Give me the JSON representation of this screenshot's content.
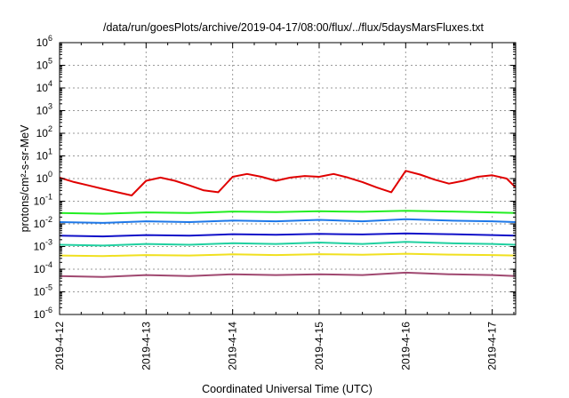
{
  "chart_data": {
    "type": "line",
    "title": "/data/run/goesPlots/archive/2019-04-17/08:00/flux/../flux/5daysMarsFluxes.txt",
    "xlabel": "Coordinated Universal Time (UTC)",
    "ylabel": "protons/cm²-s-sr-MeV",
    "y_scale": "log",
    "ylim": [
      1e-06,
      1000000.0
    ],
    "xlim": [
      "2019-04-12T00:00",
      "2019-04-17T06:30"
    ],
    "x_ticks": [
      "2019-4-12",
      "2019-4-13",
      "2019-4-14",
      "2019-4-15",
      "2019-4-16",
      "2019-4-17"
    ],
    "y_ticks": [
      {
        "base": "10",
        "exp": "-6"
      },
      {
        "base": "10",
        "exp": "-5"
      },
      {
        "base": "10",
        "exp": "-4"
      },
      {
        "base": "10",
        "exp": "-3"
      },
      {
        "base": "10",
        "exp": "-2"
      },
      {
        "base": "10",
        "exp": "-1"
      },
      {
        "base": "10",
        "exp": "0"
      },
      {
        "base": "10",
        "exp": "1"
      },
      {
        "base": "10",
        "exp": "2"
      },
      {
        "base": "10",
        "exp": "3"
      },
      {
        "base": "10",
        "exp": "4"
      },
      {
        "base": "10",
        "exp": "5"
      },
      {
        "base": "10",
        "exp": "6"
      }
    ],
    "grid": true,
    "legend": "none",
    "series": [
      {
        "color": "#e00000",
        "x": [
          "2019-04-12T00:00",
          "2019-04-12T04:00",
          "2019-04-12T08:00",
          "2019-04-12T12:00",
          "2019-04-12T16:00",
          "2019-04-12T20:00",
          "2019-04-13T00:00",
          "2019-04-13T04:00",
          "2019-04-13T08:00",
          "2019-04-13T12:00",
          "2019-04-13T16:00",
          "2019-04-13T20:00",
          "2019-04-14T00:00",
          "2019-04-14T04:00",
          "2019-04-14T08:00",
          "2019-04-14T12:00",
          "2019-04-14T16:00",
          "2019-04-14T20:00",
          "2019-04-15T00:00",
          "2019-04-15T04:00",
          "2019-04-15T08:00",
          "2019-04-15T12:00",
          "2019-04-15T16:00",
          "2019-04-15T20:00",
          "2019-04-16T00:00",
          "2019-04-16T04:00",
          "2019-04-16T08:00",
          "2019-04-16T12:00",
          "2019-04-16T16:00",
          "2019-04-16T20:00",
          "2019-04-17T00:00",
          "2019-04-17T04:00",
          "2019-04-17T06:30"
        ],
        "y": [
          1.1,
          0.7,
          0.5,
          0.35,
          0.25,
          0.18,
          0.8,
          1.1,
          0.8,
          0.5,
          0.3,
          0.25,
          1.2,
          1.6,
          1.2,
          0.8,
          1.1,
          1.3,
          1.2,
          1.6,
          1.1,
          0.7,
          0.4,
          0.25,
          2.2,
          1.5,
          0.9,
          0.6,
          0.8,
          1.2,
          1.4,
          1.0,
          0.4
        ]
      },
      {
        "color": "#22ee22",
        "x": [
          "2019-04-12T00:00",
          "2019-04-12T12:00",
          "2019-04-13T00:00",
          "2019-04-13T12:00",
          "2019-04-14T00:00",
          "2019-04-14T12:00",
          "2019-04-15T00:00",
          "2019-04-15T12:00",
          "2019-04-16T00:00",
          "2019-04-16T12:00",
          "2019-04-17T00:00",
          "2019-04-17T06:30"
        ],
        "y": [
          0.03,
          0.028,
          0.032,
          0.03,
          0.035,
          0.033,
          0.036,
          0.034,
          0.038,
          0.035,
          0.032,
          0.03
        ]
      },
      {
        "color": "#1e78e8",
        "x": [
          "2019-04-12T00:00",
          "2019-04-12T12:00",
          "2019-04-13T00:00",
          "2019-04-13T12:00",
          "2019-04-14T00:00",
          "2019-04-14T12:00",
          "2019-04-15T00:00",
          "2019-04-15T12:00",
          "2019-04-16T00:00",
          "2019-04-16T12:00",
          "2019-04-17T00:00",
          "2019-04-17T06:30"
        ],
        "y": [
          0.012,
          0.011,
          0.013,
          0.012,
          0.014,
          0.013,
          0.015,
          0.013,
          0.016,
          0.014,
          0.013,
          0.012
        ]
      },
      {
        "color": "#1010c8",
        "x": [
          "2019-04-12T00:00",
          "2019-04-12T12:00",
          "2019-04-13T00:00",
          "2019-04-13T12:00",
          "2019-04-14T00:00",
          "2019-04-14T12:00",
          "2019-04-15T00:00",
          "2019-04-15T12:00",
          "2019-04-16T00:00",
          "2019-04-16T12:00",
          "2019-04-17T00:00",
          "2019-04-17T06:30"
        ],
        "y": [
          0.003,
          0.0028,
          0.0032,
          0.003,
          0.0035,
          0.0033,
          0.0036,
          0.0034,
          0.0038,
          0.0035,
          0.0032,
          0.003
        ]
      },
      {
        "color": "#20d0a0",
        "x": [
          "2019-04-12T00:00",
          "2019-04-12T12:00",
          "2019-04-13T00:00",
          "2019-04-13T12:00",
          "2019-04-14T00:00",
          "2019-04-14T12:00",
          "2019-04-15T00:00",
          "2019-04-15T12:00",
          "2019-04-16T00:00",
          "2019-04-16T12:00",
          "2019-04-17T00:00",
          "2019-04-17T06:30"
        ],
        "y": [
          0.0012,
          0.0011,
          0.0013,
          0.0012,
          0.0014,
          0.0013,
          0.0015,
          0.0013,
          0.0016,
          0.0014,
          0.0013,
          0.0012
        ]
      },
      {
        "color": "#f0e020",
        "x": [
          "2019-04-12T00:00",
          "2019-04-12T12:00",
          "2019-04-13T00:00",
          "2019-04-13T12:00",
          "2019-04-14T00:00",
          "2019-04-14T12:00",
          "2019-04-15T00:00",
          "2019-04-15T12:00",
          "2019-04-16T00:00",
          "2019-04-16T12:00",
          "2019-04-17T00:00",
          "2019-04-17T06:30"
        ],
        "y": [
          0.0004,
          0.00038,
          0.00042,
          0.0004,
          0.00045,
          0.00042,
          0.00046,
          0.00043,
          0.00048,
          0.00044,
          0.00042,
          0.0004
        ]
      },
      {
        "color": "#a04870",
        "x": [
          "2019-04-12T00:00",
          "2019-04-12T12:00",
          "2019-04-13T00:00",
          "2019-04-13T12:00",
          "2019-04-14T00:00",
          "2019-04-14T12:00",
          "2019-04-15T00:00",
          "2019-04-15T12:00",
          "2019-04-16T00:00",
          "2019-04-16T12:00",
          "2019-04-17T00:00",
          "2019-04-17T06:30"
        ],
        "y": [
          5e-05,
          4.5e-05,
          5.5e-05,
          5e-05,
          6e-05,
          5.5e-05,
          6e-05,
          5.5e-05,
          7e-05,
          6e-05,
          5.5e-05,
          5e-05
        ]
      }
    ]
  }
}
